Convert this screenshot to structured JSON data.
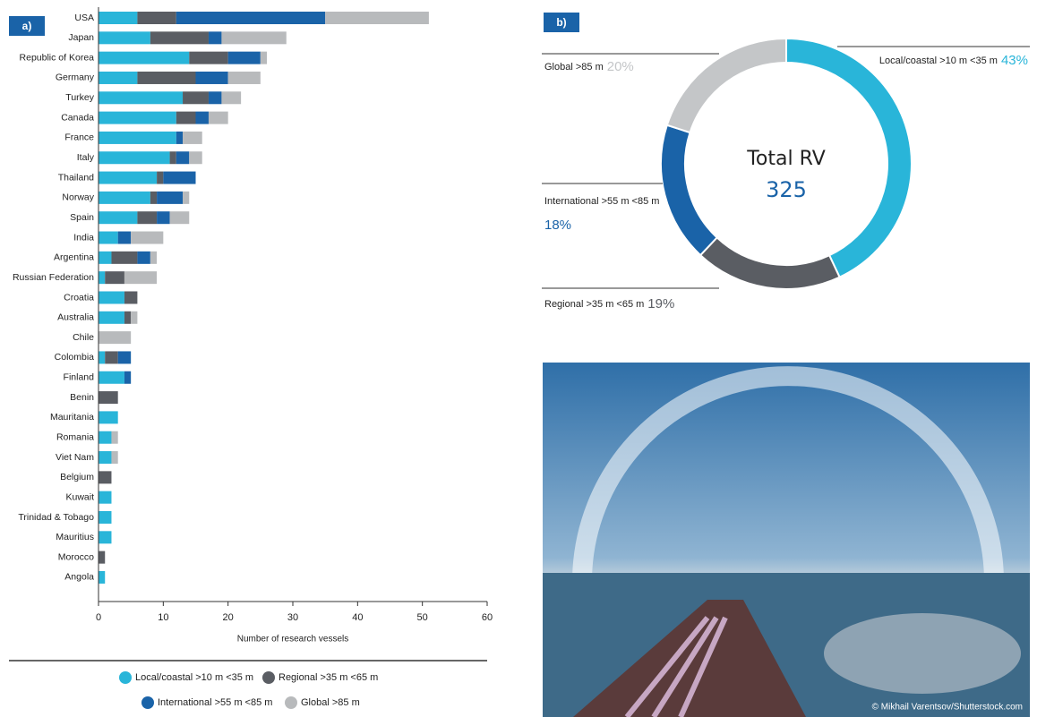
{
  "chart_data": [
    {
      "type": "bar",
      "orientation": "horizontal",
      "stacked": true,
      "label": "a)",
      "categories": [
        "USA",
        "Japan",
        "Republic of Korea",
        "Germany",
        "Turkey",
        "Canada",
        "France",
        "Italy",
        "Thailand",
        "Norway",
        "Spain",
        "India",
        "Argentina",
        "Russian Federation",
        "Croatia",
        "Australia",
        "Chile",
        "Colombia",
        "Finland",
        "Benin",
        "Mauritania",
        "Romania",
        "Viet Nam",
        "Belgium",
        "Kuwait",
        "Trinidad & Tobago",
        "Mauritius",
        "Morocco",
        "Angola"
      ],
      "series": [
        {
          "name": "Local/coastal >10 m <35 m",
          "color": "#29b5d9",
          "values": [
            6,
            8,
            14,
            6,
            13,
            12,
            12,
            11,
            9,
            8,
            6,
            3,
            2,
            1,
            4,
            4,
            0,
            1,
            4,
            0,
            3,
            2,
            2,
            0,
            2,
            2,
            2,
            0,
            1
          ]
        },
        {
          "name": "Regional >35 m <65 m",
          "color": "#5a5d63",
          "values": [
            6,
            9,
            6,
            9,
            4,
            3,
            0,
            1,
            1,
            1,
            3,
            0,
            4,
            3,
            2,
            1,
            0,
            2,
            0,
            3,
            0,
            0,
            0,
            2,
            0,
            0,
            0,
            1,
            0
          ]
        },
        {
          "name": "International >55 m <85 m",
          "color": "#1a63a8",
          "values": [
            23,
            2,
            5,
            5,
            2,
            2,
            1,
            2,
            5,
            4,
            2,
            2,
            2,
            0,
            0,
            0,
            0,
            2,
            1,
            0,
            0,
            0,
            0,
            0,
            0,
            0,
            0,
            0,
            0
          ]
        },
        {
          "name": "Global >85 m",
          "color": "#b8babc",
          "values": [
            16,
            10,
            1,
            5,
            3,
            3,
            3,
            2,
            0,
            1,
            3,
            5,
            1,
            5,
            0,
            1,
            5,
            0,
            0,
            0,
            0,
            1,
            1,
            0,
            0,
            0,
            0,
            0,
            0
          ]
        }
      ],
      "xlim": [
        0,
        60
      ],
      "xticks": [
        0,
        10,
        20,
        30,
        40,
        50,
        60
      ],
      "x_label": "Number of research vessels"
    },
    {
      "type": "pie",
      "donut": true,
      "label": "b)",
      "categories": [
        "Local/coastal >10 m <35 m",
        "Regional >35 m <65 m",
        "International >55 m <85 m",
        "Global >85 m"
      ],
      "values": [
        43,
        19,
        18,
        20
      ],
      "value_labels": [
        "43%",
        "19%",
        "18%",
        "20%"
      ],
      "colors": [
        "#29b5d9",
        "#5a5d63",
        "#1a63a8",
        "#c4c6c8"
      ],
      "center_label": "Total RV",
      "center_value": 325
    }
  ],
  "photo": {
    "credit": "© Mikhail Varentsov/Shutterstock.com"
  }
}
